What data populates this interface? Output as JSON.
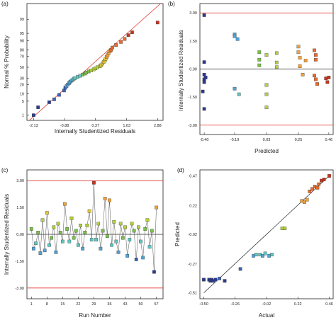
{
  "figure": {
    "panel_labels": [
      "(a)",
      "(b)",
      "(c)",
      "(d)"
    ]
  },
  "chart_data": [
    {
      "panel": "(a)",
      "type": "scatter",
      "title": "",
      "xlabel": "Internally Studentized Residuals",
      "ylabel": "Normal % Probability",
      "x_ticks": [
        "-2.13",
        "-0.88",
        "0.37",
        "1.63",
        "2.88"
      ],
      "y_ticks": [
        "1",
        "5",
        "10",
        "20",
        "30",
        "50",
        "70",
        "80",
        "90",
        "95",
        "99"
      ],
      "xlim": [
        -2.13,
        2.88
      ],
      "grid": false,
      "reference_line": {
        "from": [
          -2.3,
          0.5
        ],
        "to": [
          3.0,
          99.9
        ],
        "color": "#e0312b"
      },
      "points": [
        {
          "x": -2.13,
          "y": 1.0
        },
        {
          "x": -1.95,
          "y": 2.6
        },
        {
          "x": -1.5,
          "y": 4.5
        },
        {
          "x": -1.3,
          "y": 6.0
        },
        {
          "x": -1.1,
          "y": 9.0
        },
        {
          "x": -0.9,
          "y": 13.0
        },
        {
          "x": -0.85,
          "y": 16.0
        },
        {
          "x": -0.8,
          "y": 18.0
        },
        {
          "x": -0.75,
          "y": 20.0
        },
        {
          "x": -0.7,
          "y": 22.0
        },
        {
          "x": -0.65,
          "y": 24.0
        },
        {
          "x": -0.6,
          "y": 26.0
        },
        {
          "x": -0.55,
          "y": 27.0
        },
        {
          "x": -0.5,
          "y": 29.0
        },
        {
          "x": -0.45,
          "y": 30.0
        },
        {
          "x": -0.35,
          "y": 32.0
        },
        {
          "x": -0.25,
          "y": 34.0
        },
        {
          "x": -0.15,
          "y": 36.0
        },
        {
          "x": -0.05,
          "y": 38.0
        },
        {
          "x": 0.0,
          "y": 40.0
        },
        {
          "x": 0.1,
          "y": 42.0
        },
        {
          "x": 0.2,
          "y": 44.0
        },
        {
          "x": 0.3,
          "y": 46.0
        },
        {
          "x": 0.37,
          "y": 48.0
        },
        {
          "x": 0.45,
          "y": 50.0
        },
        {
          "x": 0.55,
          "y": 52.0
        },
        {
          "x": 0.6,
          "y": 54.0
        },
        {
          "x": 0.65,
          "y": 57.0
        },
        {
          "x": 0.7,
          "y": 60.0
        },
        {
          "x": 0.75,
          "y": 63.0
        },
        {
          "x": 0.78,
          "y": 66.0
        },
        {
          "x": 0.82,
          "y": 69.0
        },
        {
          "x": 0.86,
          "y": 72.0
        },
        {
          "x": 0.9,
          "y": 75.0
        },
        {
          "x": 0.95,
          "y": 78.0
        },
        {
          "x": 1.0,
          "y": 80.0
        },
        {
          "x": 1.05,
          "y": 83.0
        },
        {
          "x": 1.2,
          "y": 86.0
        },
        {
          "x": 1.4,
          "y": 89.0
        },
        {
          "x": 1.55,
          "y": 91.5
        },
        {
          "x": 1.7,
          "y": 94.0
        },
        {
          "x": 1.85,
          "y": 95.5
        },
        {
          "x": 2.88,
          "y": 98.5
        }
      ],
      "colors": [
        "#2b3a8f",
        "#3a62b8",
        "#4ea3d9",
        "#60c6c0",
        "#7cc04a",
        "#b3d23d",
        "#e2c935",
        "#f2a33a",
        "#e86a2a",
        "#c8341f"
      ]
    },
    {
      "panel": "(b)",
      "type": "scatter",
      "title": "",
      "xlabel": "Predicted",
      "ylabel": "Internally Studentized Residuals",
      "x_ticks": [
        "-0.40",
        "-0.19",
        "0.03",
        "0.25",
        "0.46"
      ],
      "y_ticks": [
        "3.00",
        "1.50",
        "0.00",
        "-1.50",
        "-3.00"
      ],
      "xlim": [
        -0.4,
        0.46
      ],
      "ylim": [
        -3.0,
        3.0
      ],
      "limit_lines": [
        3.0,
        -3.0
      ],
      "zero_line": 0.0,
      "points": [
        {
          "x": -0.4,
          "y": 2.88
        },
        {
          "x": -0.4,
          "y": 0.37
        },
        {
          "x": -0.4,
          "y": -0.3
        },
        {
          "x": -0.4,
          "y": -0.55
        },
        {
          "x": -0.4,
          "y": -0.7
        },
        {
          "x": -0.41,
          "y": -1.2
        },
        {
          "x": -0.4,
          "y": -2.13
        },
        {
          "x": -0.39,
          "y": -0.45
        },
        {
          "x": -0.19,
          "y": 1.85
        },
        {
          "x": -0.19,
          "y": 1.75
        },
        {
          "x": -0.17,
          "y": 1.6
        },
        {
          "x": -0.19,
          "y": -1.05
        },
        {
          "x": -0.16,
          "y": -1.35
        },
        {
          "x": -0.02,
          "y": 0.9
        },
        {
          "x": -0.02,
          "y": 0.5
        },
        {
          "x": -0.02,
          "y": 0.2
        },
        {
          "x": 0.03,
          "y": 0.75
        },
        {
          "x": 0.03,
          "y": -0.85
        },
        {
          "x": 0.03,
          "y": -1.35
        },
        {
          "x": 0.03,
          "y": -2.05
        },
        {
          "x": 0.1,
          "y": 0.85
        },
        {
          "x": 0.1,
          "y": 0.35
        },
        {
          "x": 0.1,
          "y": 0.1
        },
        {
          "x": 0.25,
          "y": 1.2
        },
        {
          "x": 0.25,
          "y": 0.9
        },
        {
          "x": 0.26,
          "y": 0.6
        },
        {
          "x": 0.26,
          "y": 0.15
        },
        {
          "x": 0.28,
          "y": -0.3
        },
        {
          "x": 0.3,
          "y": 0.45
        },
        {
          "x": 0.36,
          "y": 1.0
        },
        {
          "x": 0.37,
          "y": 0.75
        },
        {
          "x": 0.37,
          "y": 0.5
        },
        {
          "x": 0.36,
          "y": -0.35
        },
        {
          "x": 0.37,
          "y": -0.55
        },
        {
          "x": 0.38,
          "y": -0.8
        },
        {
          "x": 0.44,
          "y": -0.5
        },
        {
          "x": 0.45,
          "y": -0.7
        },
        {
          "x": 0.46,
          "y": -0.45
        }
      ]
    },
    {
      "panel": "(c)",
      "type": "line",
      "title": "",
      "xlabel": "Run Number",
      "ylabel": "Internally Studentized Residuals",
      "x_ticks": [
        "1",
        "8",
        "15",
        "22",
        "29",
        "36",
        "43",
        "50",
        "57"
      ],
      "y_ticks": [
        "3.00",
        "1.50",
        "0.00",
        "-1.50",
        "-3.00"
      ],
      "xlim": [
        1,
        57
      ],
      "ylim": [
        -3.0,
        3.0
      ],
      "limit_lines": [
        3.0,
        -3.0
      ],
      "zero_line": 0.0,
      "y": [
        0.3,
        -0.8,
        -0.5,
        0.1,
        -1.05,
        0.8,
        -0.9,
        1.2,
        -0.6,
        -0.2,
        0.4,
        -1.0,
        0.6,
        0.1,
        -0.4,
        1.7,
        0.3,
        -0.4,
        0.9,
        -0.2,
        0.2,
        -0.6,
        0.5,
        -0.8,
        0.1,
        0.5,
        1.3,
        -0.3,
        2.88,
        -0.3,
        0.6,
        -0.8,
        0.2,
        2.0,
        -0.1,
        1.9,
        -0.6,
        0.7,
        -0.4,
        -1.0,
        0.6,
        -0.2,
        0.4,
        -1.2,
        -0.3,
        0.6,
        0.2,
        -1.4,
        0.4,
        -0.4,
        -1.3,
        0.3,
        0.8,
        -0.7,
        0.2,
        -2.1,
        1.5
      ]
    },
    {
      "panel": "(d)",
      "type": "scatter",
      "title": "",
      "xlabel": "Actual",
      "ylabel": "Predicted",
      "x_ticks": [
        "-0.50",
        "-0.26",
        "-0.02",
        "0.22",
        "0.46"
      ],
      "y_ticks": [
        "0.47",
        "0.22",
        "-0.02",
        "-0.27",
        "-0.51"
      ],
      "xlim": [
        -0.5,
        0.46
      ],
      "ylim": [
        -0.51,
        0.47
      ],
      "reference_line": {
        "from": [
          -0.5,
          -0.51
        ],
        "to": [
          0.46,
          0.47
        ],
        "color": "#222222"
      },
      "points": [
        {
          "x": -0.5,
          "y": -0.4
        },
        {
          "x": -0.46,
          "y": -0.4
        },
        {
          "x": -0.45,
          "y": -0.41
        },
        {
          "x": -0.44,
          "y": -0.4
        },
        {
          "x": -0.43,
          "y": -0.41
        },
        {
          "x": -0.41,
          "y": -0.4
        },
        {
          "x": -0.38,
          "y": -0.39
        },
        {
          "x": -0.34,
          "y": -0.41
        },
        {
          "x": -0.22,
          "y": -0.31
        },
        {
          "x": -0.12,
          "y": -0.2
        },
        {
          "x": -0.1,
          "y": -0.19
        },
        {
          "x": -0.07,
          "y": -0.19
        },
        {
          "x": -0.05,
          "y": -0.2
        },
        {
          "x": -0.03,
          "y": -0.18
        },
        {
          "x": 0.0,
          "y": -0.2
        },
        {
          "x": 0.02,
          "y": -0.19
        },
        {
          "x": 0.1,
          "y": 0.03
        },
        {
          "x": 0.12,
          "y": 0.03
        },
        {
          "x": 0.25,
          "y": 0.26
        },
        {
          "x": 0.27,
          "y": 0.25
        },
        {
          "x": 0.29,
          "y": 0.27
        },
        {
          "x": 0.31,
          "y": 0.34
        },
        {
          "x": 0.33,
          "y": 0.36
        },
        {
          "x": 0.35,
          "y": 0.38
        },
        {
          "x": 0.37,
          "y": 0.37
        },
        {
          "x": 0.38,
          "y": 0.4
        },
        {
          "x": 0.4,
          "y": 0.43
        },
        {
          "x": 0.42,
          "y": 0.44
        },
        {
          "x": 0.46,
          "y": 0.47
        }
      ]
    }
  ]
}
